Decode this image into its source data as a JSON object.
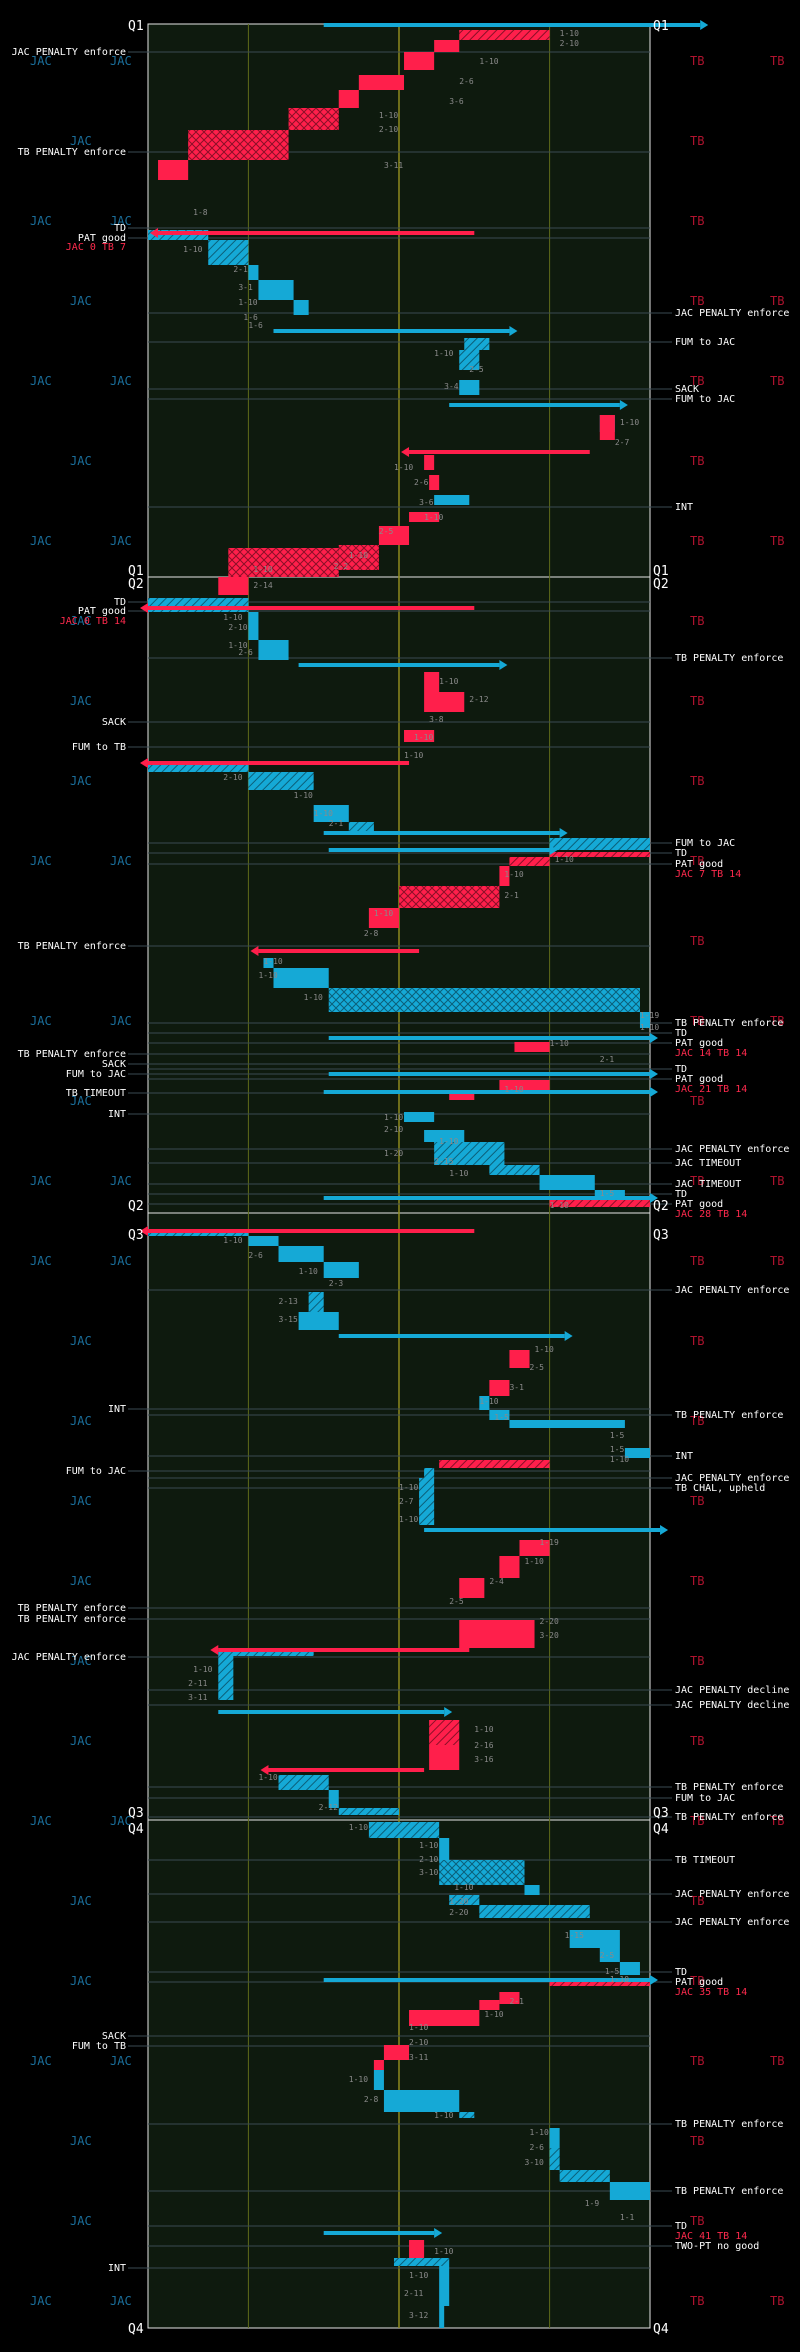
{
  "colors": {
    "jac": "#15a9d6",
    "tb": "#ff1f4b",
    "field": "#0e1a0e",
    "yard_line_10": "#5f6b1a",
    "yard_line_50": "#8d8a1e",
    "border": "#e6e6e6",
    "annotation_line": "#3a4a52",
    "team_label_jac": "#1a6e9a",
    "team_label_tb": "#b0132e"
  },
  "chart_data": {
    "type": "play-by-play drive chart",
    "teams": [
      "JAC",
      "TB"
    ],
    "quarters": [
      {
        "label": "Q1",
        "team_labels": [
          [
            "JAC",
            "JAC",
            "TB",
            "TB"
          ],
          [
            "JAC",
            "TB"
          ],
          [
            "JAC",
            "JAC",
            "TB"
          ],
          [
            "JAC",
            "TB",
            "TB"
          ],
          [
            "JAC",
            "JAC",
            "TB",
            "TB"
          ],
          [
            "JAC",
            "TB"
          ],
          [
            "JAC",
            "JAC",
            "TB",
            "TB"
          ]
        ],
        "annotations_left": [
          {
            "text": "JAC PENALTY enforce",
            "style": "white"
          },
          {
            "text": "TB PENALTY enforce",
            "style": "white"
          },
          {
            "text": "TD",
            "style": "white"
          },
          {
            "text": "PAT good",
            "style": "white"
          },
          {
            "text": "JAC 0 TB 7",
            "style": "red"
          }
        ],
        "annotations_right": [
          {
            "text": "JAC PENALTY enforce",
            "style": "white"
          },
          {
            "text": "FUM to JAC",
            "style": "white"
          },
          {
            "text": "SACK",
            "style": "white"
          },
          {
            "text": "FUM to JAC",
            "style": "white"
          },
          {
            "text": "INT",
            "style": "white"
          }
        ],
        "down_distance": [
          "1-10",
          "2-10",
          "1-10",
          "2-6",
          "3-6",
          "1-10",
          "2-10",
          "3-11",
          "1-8",
          "1-10",
          "2-1",
          "3-1",
          "1-10",
          "1-6",
          "1-6",
          "1-10",
          "2-5",
          "3-4",
          "1-10",
          "2-7",
          "1-10",
          "2-6",
          "3-6",
          "1-10",
          "2-5",
          "1-10",
          "2-2",
          "1-10",
          "2-14"
        ]
      },
      {
        "label": "Q2",
        "team_labels": [
          [
            "JAC",
            "TB"
          ],
          [
            "JAC",
            "TB"
          ],
          [
            "JAC",
            "TB"
          ],
          [
            "JAC",
            "JAC",
            "TB"
          ],
          [
            "TB"
          ],
          [
            "JAC",
            "JAC",
            "TB",
            "TB"
          ],
          [
            "JAC",
            "TB"
          ],
          [
            "JAC",
            "JAC",
            "TB",
            "TB"
          ]
        ],
        "annotations_left": [
          {
            "text": "TD",
            "style": "white"
          },
          {
            "text": "PAT good",
            "style": "white"
          },
          {
            "text": "JAC 0 TB 14",
            "style": "red"
          },
          {
            "text": "SACK",
            "style": "white"
          },
          {
            "text": "FUM to TB",
            "style": "white"
          },
          {
            "text": "TB PENALTY enforce",
            "style": "white"
          },
          {
            "text": "TB PENALTY enforce",
            "style": "white"
          },
          {
            "text": "SACK",
            "style": "white"
          },
          {
            "text": "FUM to JAC",
            "style": "white"
          },
          {
            "text": "TB TIMEOUT",
            "style": "white"
          },
          {
            "text": "INT",
            "style": "white"
          }
        ],
        "annotations_right": [
          {
            "text": "TB PENALTY enforce",
            "style": "white"
          },
          {
            "text": "FUM to JAC",
            "style": "white"
          },
          {
            "text": "TD",
            "style": "white"
          },
          {
            "text": "PAT good",
            "style": "white"
          },
          {
            "text": "JAC 7 TB 14",
            "style": "red"
          },
          {
            "text": "TB PENALTY enforce",
            "style": "white"
          },
          {
            "text": "TD",
            "style": "white"
          },
          {
            "text": "PAT good",
            "style": "white"
          },
          {
            "text": "JAC 14 TB 14",
            "style": "red"
          },
          {
            "text": "TD",
            "style": "white"
          },
          {
            "text": "PAT good",
            "style": "white"
          },
          {
            "text": "JAC 21 TB 14",
            "style": "red"
          },
          {
            "text": "JAC PENALTY enforce",
            "style": "white"
          },
          {
            "text": "JAC TIMEOUT",
            "style": "white"
          },
          {
            "text": "JAC TIMEOUT",
            "style": "white"
          },
          {
            "text": "TD",
            "style": "white"
          },
          {
            "text": "PAT good",
            "style": "white"
          },
          {
            "text": "JAC 28 TB 14",
            "style": "red"
          }
        ],
        "down_distance": [
          "1-10",
          "2-10",
          "1-10",
          "2-6",
          "1-10",
          "2-12",
          "3-8",
          "1-10",
          "1-10",
          "2-10",
          "1-10",
          "1-10",
          "2-1",
          "1-10",
          "1-10",
          "2-1",
          "1-10",
          "2-8",
          "1-10",
          "1-10",
          "1-10",
          "1-19",
          "1-10",
          "1-10",
          "2-1",
          "1-10",
          "1-10",
          "2-10",
          "1-10",
          "1-20",
          "2-15",
          "1-10",
          "1-5",
          "1-10"
        ]
      },
      {
        "label": "Q3",
        "team_labels": [
          [
            "JAC",
            "JAC",
            "TB",
            "TB"
          ],
          [
            "JAC",
            "TB"
          ],
          [
            "JAC",
            "TB"
          ],
          [
            "JAC",
            "TB"
          ],
          [
            "JAC",
            "TB"
          ],
          [
            "JAC",
            "TB"
          ],
          [
            "JAC",
            "TB"
          ]
        ],
        "annotations_left": [
          {
            "text": "INT",
            "style": "white"
          },
          {
            "text": "FUM to JAC",
            "style": "white"
          },
          {
            "text": "TB PENALTY enforce",
            "style": "white"
          },
          {
            "text": "TB PENALTY enforce",
            "style": "white"
          },
          {
            "text": "JAC PENALTY enforce",
            "style": "white"
          }
        ],
        "annotations_right": [
          {
            "text": "JAC PENALTY enforce",
            "style": "white"
          },
          {
            "text": "TB PENALTY enforce",
            "style": "white"
          },
          {
            "text": "INT",
            "style": "white"
          },
          {
            "text": "JAC PENALTY enforce",
            "style": "white"
          },
          {
            "text": "TB CHAL, upheld",
            "style": "white"
          },
          {
            "text": "JAC PENALTY decline",
            "style": "white"
          },
          {
            "text": "JAC PENALTY decline",
            "style": "white"
          },
          {
            "text": "TB PENALTY enforce",
            "style": "white"
          },
          {
            "text": "FUM to JAC",
            "style": "white"
          },
          {
            "text": "TB PENALTY enforce",
            "style": "white"
          }
        ],
        "down_distance": [
          "1-10",
          "2-6",
          "1-10",
          "2-3",
          "2-13",
          "3-15",
          "1-10",
          "2-5",
          "3-1",
          "1-10",
          "1-5",
          "1-5",
          "1-5",
          "1-10",
          "1-10",
          "2-7",
          "1-10",
          "1-19",
          "1-10",
          "2-4",
          "2-5",
          "2-20",
          "3-20",
          "1-10",
          "2-11",
          "3-11",
          "1-10",
          "2-16",
          "3-16",
          "1-10",
          "2-12"
        ]
      },
      {
        "label": "Q4",
        "team_labels": [
          [
            "JAC",
            "JAC",
            "TB",
            "TB"
          ],
          [
            "JAC",
            "TB"
          ],
          [
            "JAC",
            "TB"
          ],
          [
            "JAC",
            "JAC",
            "TB",
            "TB"
          ],
          [
            "JAC",
            "TB"
          ],
          [
            "JAC",
            "TB"
          ],
          [
            "JAC",
            "JAC",
            "TB",
            "TB"
          ]
        ],
        "annotations_left": [
          {
            "text": "SACK",
            "style": "white"
          },
          {
            "text": "FUM to TB",
            "style": "white"
          },
          {
            "text": "INT",
            "style": "white"
          }
        ],
        "annotations_right": [
          {
            "text": "TB TIMEOUT",
            "style": "white"
          },
          {
            "text": "JAC PENALTY enforce",
            "style": "white"
          },
          {
            "text": "JAC PENALTY enforce",
            "style": "white"
          },
          {
            "text": "TD",
            "style": "white"
          },
          {
            "text": "PAT good",
            "style": "white"
          },
          {
            "text": "JAC 35 TB 14",
            "style": "red"
          },
          {
            "text": "TB PENALTY enforce",
            "style": "white"
          },
          {
            "text": "TB PENALTY enforce",
            "style": "white"
          },
          {
            "text": "TD",
            "style": "white"
          },
          {
            "text": "JAC 41 TB 14",
            "style": "red"
          },
          {
            "text": "TWO-PT no good",
            "style": "white"
          }
        ],
        "down_distance": [
          "1-10",
          "1-10",
          "2-10",
          "3-10",
          "1-10",
          "1-20",
          "2-20",
          "1-15",
          "2-5",
          "1-5",
          "1-10",
          "2-1",
          "1-10",
          "1-10",
          "2-10",
          "3-11",
          "1-10",
          "2-8",
          "1-10",
          "1-10",
          "2-6",
          "3-10",
          "1-9",
          "1-1",
          "1-10",
          "1-10",
          "2-11",
          "3-12"
        ]
      }
    ]
  }
}
